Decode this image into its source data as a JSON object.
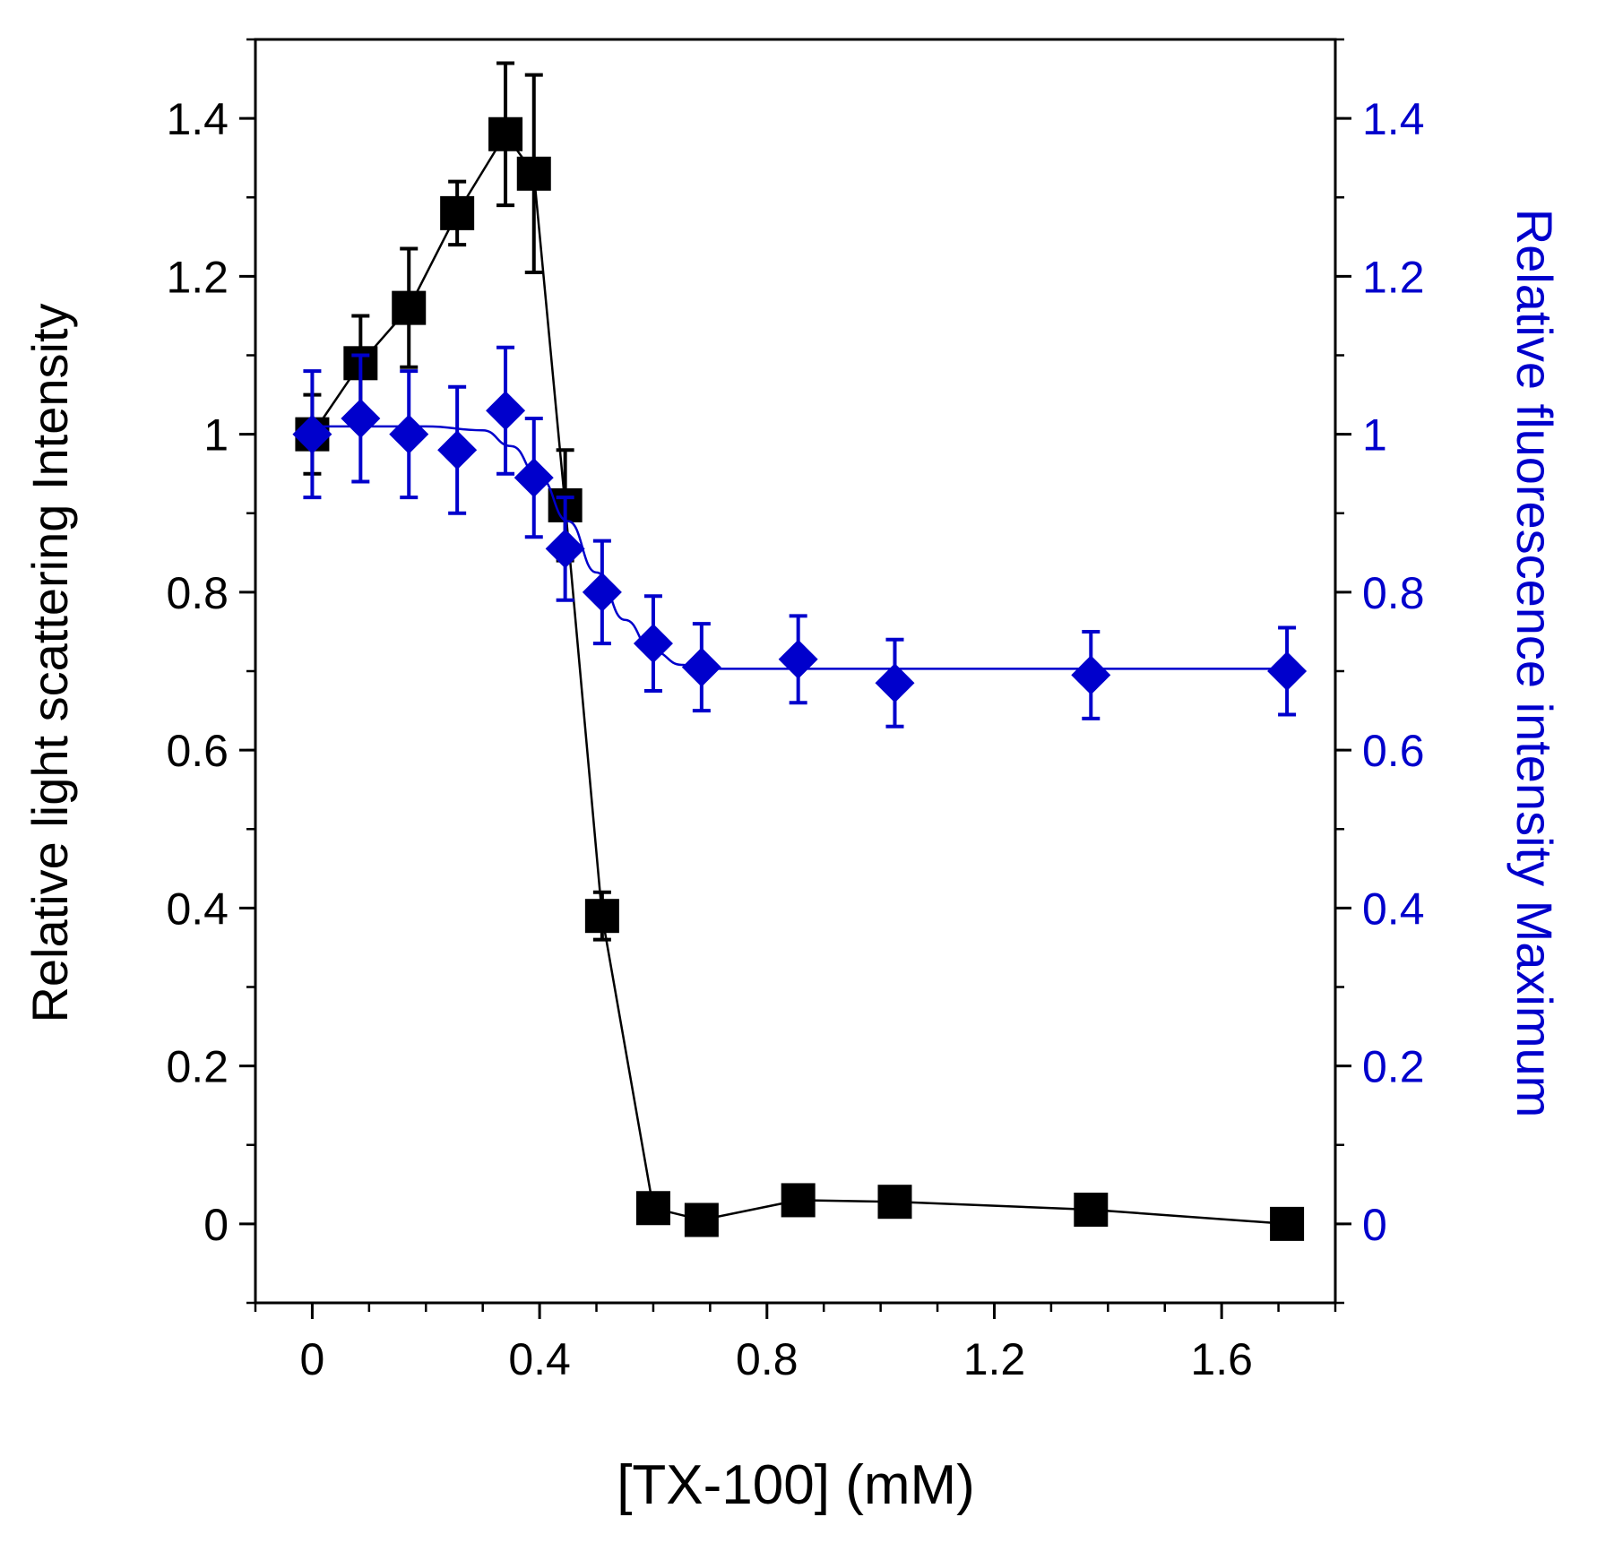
{
  "chart_data": {
    "type": "scatter",
    "xlabel": "[TX-100] (mM)",
    "ylabel_left": "Relative light scattering Intensity",
    "ylabel_right": "Relative fluorescence intensity Maximum",
    "xlim": [
      -0.1,
      1.8
    ],
    "ylim_left": [
      -0.1,
      1.5
    ],
    "ylim_right": [
      -0.1,
      1.5
    ],
    "x_ticks": [
      {
        "value": 0,
        "label": "0"
      },
      {
        "value": 0.4,
        "label": "0.4"
      },
      {
        "value": 0.8,
        "label": "0.8"
      },
      {
        "value": 1.2,
        "label": "1.2"
      },
      {
        "value": 1.6,
        "label": "1.6"
      }
    ],
    "x_minor_step": 0.1,
    "y_ticks": [
      {
        "value": 0,
        "label": "0"
      },
      {
        "value": 0.2,
        "label": "0.2"
      },
      {
        "value": 0.4,
        "label": "0.4"
      },
      {
        "value": 0.6,
        "label": "0.6"
      },
      {
        "value": 0.8,
        "label": "0.8"
      },
      {
        "value": 1.0,
        "label": "1"
      },
      {
        "value": 1.2,
        "label": "1.2"
      },
      {
        "value": 1.4,
        "label": "1.4"
      }
    ],
    "y_minor_step": 0.1,
    "series": [
      {
        "name": "Relative light scattering Intensity",
        "axis": "left",
        "color": "#000000",
        "marker": "square",
        "x": [
          0.0,
          0.085,
          0.17,
          0.255,
          0.34,
          0.39,
          0.445,
          0.51,
          0.6,
          0.685,
          0.855,
          1.025,
          1.37,
          1.715
        ],
        "y": [
          1.0,
          1.09,
          1.16,
          1.28,
          1.38,
          1.33,
          0.91,
          0.39,
          0.02,
          0.005,
          0.03,
          0.028,
          0.018,
          0.0
        ],
        "err": [
          0.05,
          0.06,
          0.075,
          0.04,
          0.09,
          0.125,
          0.07,
          0.03,
          0.0,
          0.0,
          0.0,
          0.0,
          0.0,
          0.0
        ],
        "line": "connect"
      },
      {
        "name": "Relative fluorescence intensity Maximum",
        "axis": "right",
        "color": "#0000cc",
        "marker": "diamond",
        "x": [
          0.0,
          0.085,
          0.17,
          0.255,
          0.34,
          0.39,
          0.445,
          0.51,
          0.6,
          0.685,
          0.855,
          1.025,
          1.37,
          1.715
        ],
        "y": [
          1.0,
          1.02,
          1.0,
          0.98,
          1.03,
          0.945,
          0.855,
          0.8,
          0.735,
          0.705,
          0.715,
          0.685,
          0.695,
          0.7
        ],
        "err": [
          0.08,
          0.08,
          0.08,
          0.08,
          0.08,
          0.075,
          0.065,
          0.065,
          0.06,
          0.055,
          0.055,
          0.055,
          0.055,
          0.055
        ],
        "fit": {
          "x": [
            0.0,
            0.2,
            0.3,
            0.35,
            0.4,
            0.45,
            0.5,
            0.55,
            0.6,
            0.65,
            0.7,
            0.8,
            1.0,
            1.715
          ],
          "y": [
            1.01,
            1.01,
            1.005,
            0.985,
            0.945,
            0.89,
            0.825,
            0.765,
            0.725,
            0.708,
            0.703,
            0.703,
            0.703,
            0.703
          ]
        }
      }
    ]
  }
}
